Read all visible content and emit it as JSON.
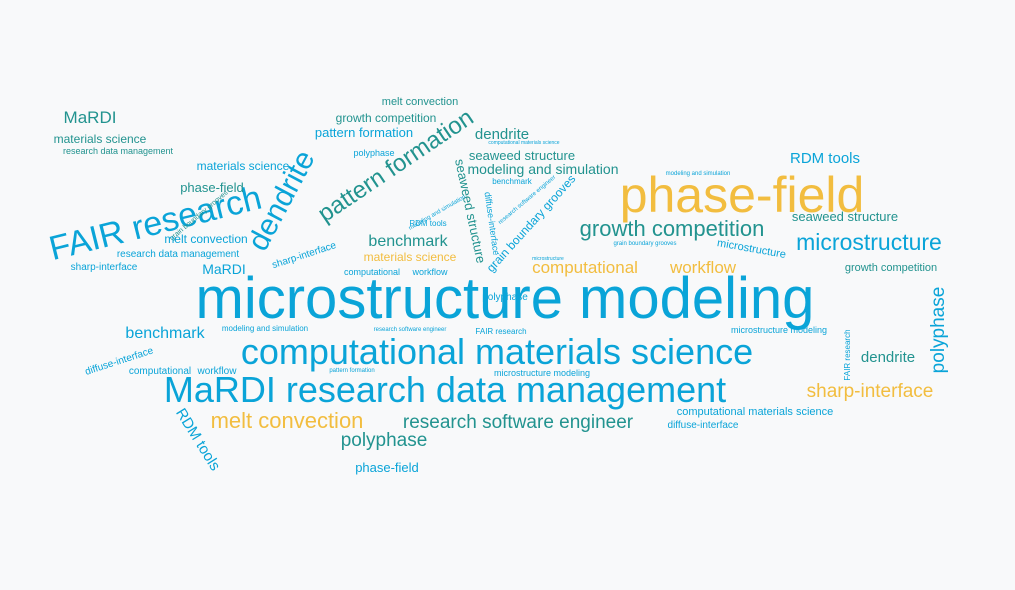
{
  "palette": {
    "blue": "#0aa4d8",
    "teal": "#22938f",
    "amber": "#f2bd3f",
    "background": "#f8f9fa"
  },
  "words": [
    {
      "text": "microstructure modeling",
      "color": "blue"
    },
    {
      "text": "computational materials science",
      "color": "blue"
    },
    {
      "text": "MaRDI research data management",
      "color": "blue"
    },
    {
      "text": "phase-field",
      "color": "amber"
    },
    {
      "text": "FAIR research",
      "color": "blue"
    },
    {
      "text": "dendrite",
      "color": "blue"
    },
    {
      "text": "pattern formation",
      "color": "teal"
    },
    {
      "text": "microstructure",
      "color": "blue"
    },
    {
      "text": "growth competition",
      "color": "teal"
    },
    {
      "text": "melt convection",
      "color": "amber"
    },
    {
      "text": "research software engineer",
      "color": "teal"
    },
    {
      "text": "polyphase",
      "color": "teal"
    },
    {
      "text": "sharp-interface",
      "color": "amber"
    },
    {
      "text": "computational",
      "color": "amber"
    },
    {
      "text": "workflow",
      "color": "amber"
    },
    {
      "text": "polyphase",
      "color": "blue"
    },
    {
      "text": "benchmark",
      "color": "teal"
    },
    {
      "text": "seaweed structure",
      "color": "teal"
    },
    {
      "text": "modeling and simulation",
      "color": "teal"
    },
    {
      "text": "dendrite",
      "color": "teal"
    },
    {
      "text": "RDM tools",
      "color": "blue"
    },
    {
      "text": "MaRDI",
      "color": "teal"
    },
    {
      "text": "seaweed structure",
      "color": "teal"
    },
    {
      "text": "benchmark",
      "color": "blue"
    },
    {
      "text": "dendrite",
      "color": "teal"
    },
    {
      "text": "MaRDI",
      "color": "blue"
    },
    {
      "text": "phase-field",
      "color": "blue"
    },
    {
      "text": "RDM tools",
      "color": "blue"
    },
    {
      "text": "seaweed structure",
      "color": "teal"
    },
    {
      "text": "grain boundary grooves",
      "color": "teal"
    },
    {
      "text": "pattern formation",
      "color": "blue"
    },
    {
      "text": "materials science",
      "color": "teal"
    },
    {
      "text": "materials science",
      "color": "blue"
    },
    {
      "text": "materials science",
      "color": "amber"
    },
    {
      "text": "phase-field",
      "color": "teal"
    },
    {
      "text": "growth competition",
      "color": "teal"
    },
    {
      "text": "melt convection",
      "color": "teal"
    },
    {
      "text": "melt convection",
      "color": "blue"
    },
    {
      "text": "growth competition",
      "color": "teal"
    },
    {
      "text": "microstructure",
      "color": "blue"
    },
    {
      "text": "sharp-interface",
      "color": "blue"
    },
    {
      "text": "research data management",
      "color": "teal"
    },
    {
      "text": "research data management",
      "color": "blue"
    },
    {
      "text": "polyphase",
      "color": "blue"
    },
    {
      "text": "sharp-interface",
      "color": "blue"
    },
    {
      "text": "diffuse-interface",
      "color": "blue"
    },
    {
      "text": "diffuse-interface",
      "color": "blue"
    },
    {
      "text": "diffuse-interface",
      "color": "blue"
    },
    {
      "text": "computational",
      "color": "blue"
    },
    {
      "text": "workflow",
      "color": "blue"
    },
    {
      "text": "computational",
      "color": "blue"
    },
    {
      "text": "workflow",
      "color": "blue"
    },
    {
      "text": "computational materials science",
      "color": "blue"
    },
    {
      "text": "FAIR research",
      "color": "blue"
    },
    {
      "text": "FAIR research",
      "color": "blue"
    },
    {
      "text": "microstructure modeling",
      "color": "blue"
    },
    {
      "text": "microstructure modeling",
      "color": "blue"
    },
    {
      "text": "modeling and simulation",
      "color": "blue"
    },
    {
      "text": "modeling and simulation",
      "color": "blue"
    },
    {
      "text": "research software engineer",
      "color": "blue"
    },
    {
      "text": "research software engineer",
      "color": "blue"
    },
    {
      "text": "benchmark",
      "color": "blue"
    },
    {
      "text": "RDM tools",
      "color": "blue"
    },
    {
      "text": "grain boundary grooves",
      "color": "blue"
    },
    {
      "text": "grain boundary grooves",
      "color": "blue"
    },
    {
      "text": "pattern formation",
      "color": "blue"
    },
    {
      "text": "computational materials science",
      "color": "blue"
    },
    {
      "text": "microstructure",
      "color": "blue"
    },
    {
      "text": "modeling and simulation",
      "color": "blue"
    },
    {
      "text": "polyphase",
      "color": "blue"
    }
  ]
}
